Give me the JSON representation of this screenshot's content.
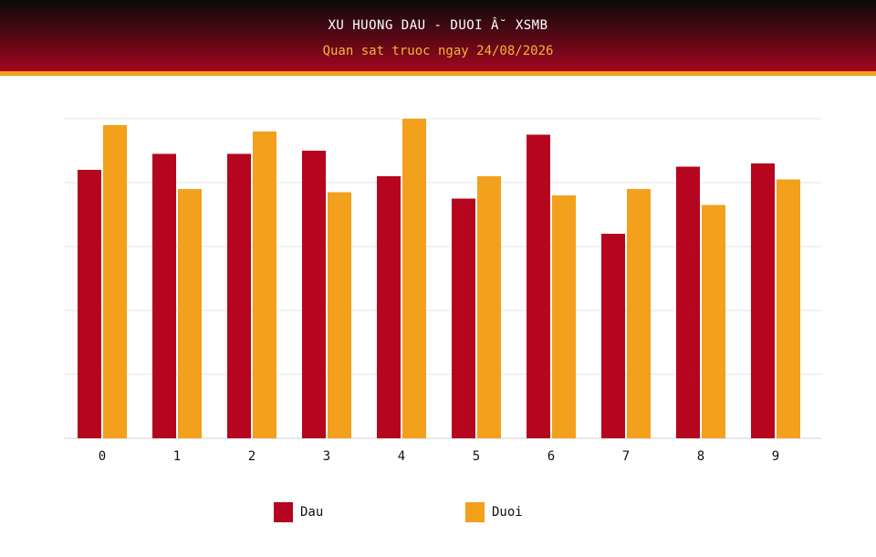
{
  "header": {
    "title": "XU HUONG DAU - DUOI Â˘ XSMB",
    "subtitle": "Quan sat truoc ngay 24/08/2026"
  },
  "colors": {
    "dau": "#b5051f",
    "duoi": "#f3a01c",
    "grid": "#e6e6e6",
    "axis": "#cfcfcf"
  },
  "chart_data": {
    "type": "bar",
    "categories": [
      "0",
      "1",
      "2",
      "3",
      "4",
      "5",
      "6",
      "7",
      "8",
      "9"
    ],
    "series": [
      {
        "name": "Dau",
        "values": [
          84,
          89,
          89,
          90,
          82,
          75,
          95,
          64,
          85,
          86
        ]
      },
      {
        "name": "Duoi",
        "values": [
          98,
          78,
          96,
          77,
          100,
          82,
          76,
          78,
          73,
          81
        ]
      }
    ],
    "ylim": [
      0,
      100
    ],
    "grid": true,
    "y_tick_labels_visible": false,
    "legend_position": "bottom"
  }
}
